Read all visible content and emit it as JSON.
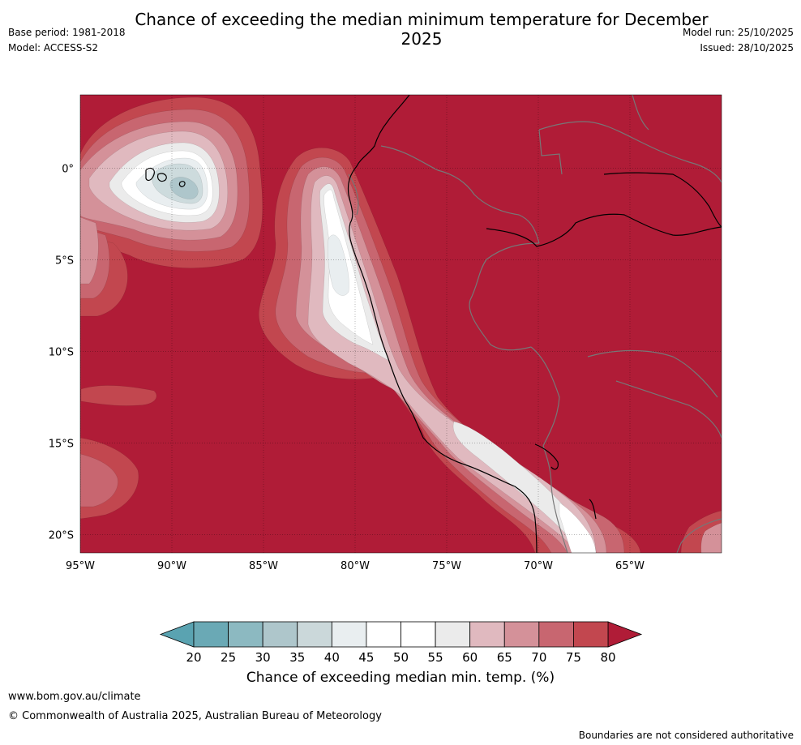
{
  "header": {
    "title": "Chance of exceeding the median minimum temperature for December 2025",
    "base_period": "Base period: 1981-2018",
    "model": "Model: ACCESS-S2",
    "model_run": "Model run: 25/10/2025",
    "issued": "Issued: 28/10/2025"
  },
  "map": {
    "lon_range": [
      -95,
      -60
    ],
    "lat_range": [
      -21,
      4
    ],
    "lon_ticks": [
      {
        "value": -95,
        "label": "95°W"
      },
      {
        "value": -90,
        "label": "90°W"
      },
      {
        "value": -85,
        "label": "85°W"
      },
      {
        "value": -80,
        "label": "80°W"
      },
      {
        "value": -75,
        "label": "75°W"
      },
      {
        "value": -70,
        "label": "70°W"
      },
      {
        "value": -65,
        "label": "65°W"
      }
    ],
    "lat_ticks": [
      {
        "value": 0,
        "label": "0°"
      },
      {
        "value": -5,
        "label": "5°S"
      },
      {
        "value": -10,
        "label": "10°S"
      },
      {
        "value": -15,
        "label": "15°S"
      },
      {
        "value": -20,
        "label": "20°S"
      }
    ],
    "colors": {
      "background": "#b01c37",
      "c75": "#c2474f",
      "c70": "#c86670",
      "c65": "#d49199",
      "c60": "#e0b9bf",
      "c55": "#ebebeb",
      "c50": "#ffffff",
      "c40": "#e9eef0",
      "c35": "#cddbdd",
      "c30": "#aec6cb",
      "border": "#777777",
      "coast": "#000000"
    }
  },
  "colorbar": {
    "levels": [
      20,
      25,
      30,
      35,
      40,
      45,
      50,
      55,
      60,
      65,
      70,
      75,
      80
    ],
    "colors": [
      "#6aa9b5",
      "#8cb9c1",
      "#aec6cb",
      "#cbd8da",
      "#e9eef0",
      "#ffffff",
      "#ffffff",
      "#ebebeb",
      "#e0b9bf",
      "#d49199",
      "#c86670",
      "#c2474f"
    ],
    "under_color": "#5aa3b1",
    "over_color": "#b01c37",
    "title": "Chance of exceeding median min. temp. (%)"
  },
  "footer": {
    "url": "www.bom.gov.au/climate",
    "copyright": "© Commonwealth of Australia 2025, Australian Bureau of Meteorology",
    "note": "Boundaries are not considered authoritative"
  }
}
